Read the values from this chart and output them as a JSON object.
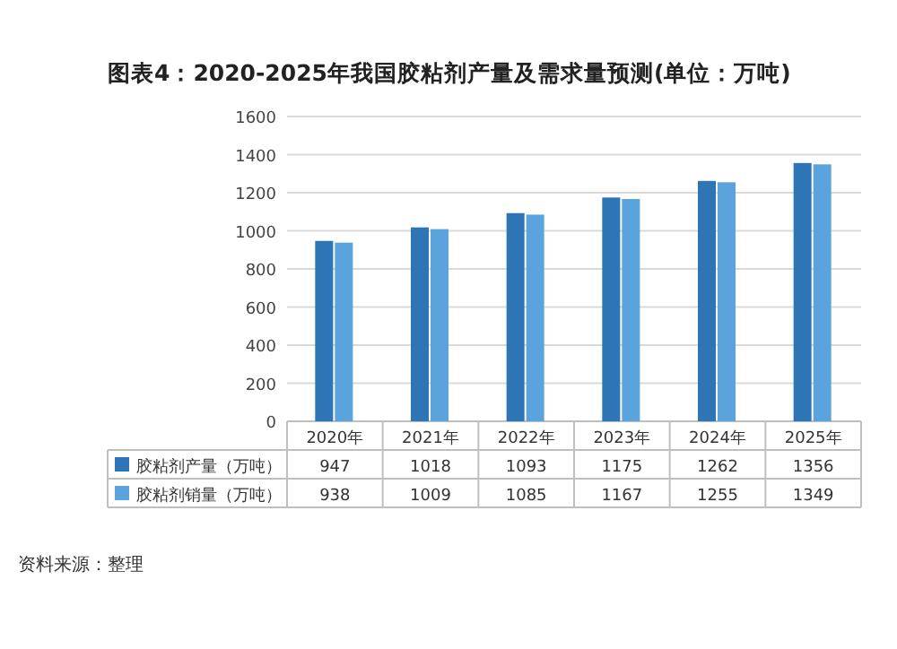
{
  "chart_data": {
    "type": "bar",
    "title": "图表4：2020-2025年我国胶粘剂产量及需求量预测(单位：万吨)",
    "categories": [
      "2020年",
      "2021年",
      "2022年",
      "2023年",
      "2024年",
      "2025年"
    ],
    "series": [
      {
        "name": "胶粘剂产量（万吨）",
        "color": "#2e75b6",
        "values": [
          947,
          1018,
          1093,
          1175,
          1262,
          1356
        ]
      },
      {
        "name": "胶粘剂销量（万吨）",
        "color": "#5ba3dc",
        "values": [
          938,
          1009,
          1085,
          1167,
          1255,
          1349
        ]
      }
    ],
    "ylim": [
      0,
      1600
    ],
    "yticks": [
      0,
      200,
      400,
      600,
      800,
      1000,
      1200,
      1400,
      1600
    ],
    "grid": "y",
    "legend": "bottom",
    "data_labels": true,
    "annotations": [
      "资料来源：整理"
    ]
  }
}
